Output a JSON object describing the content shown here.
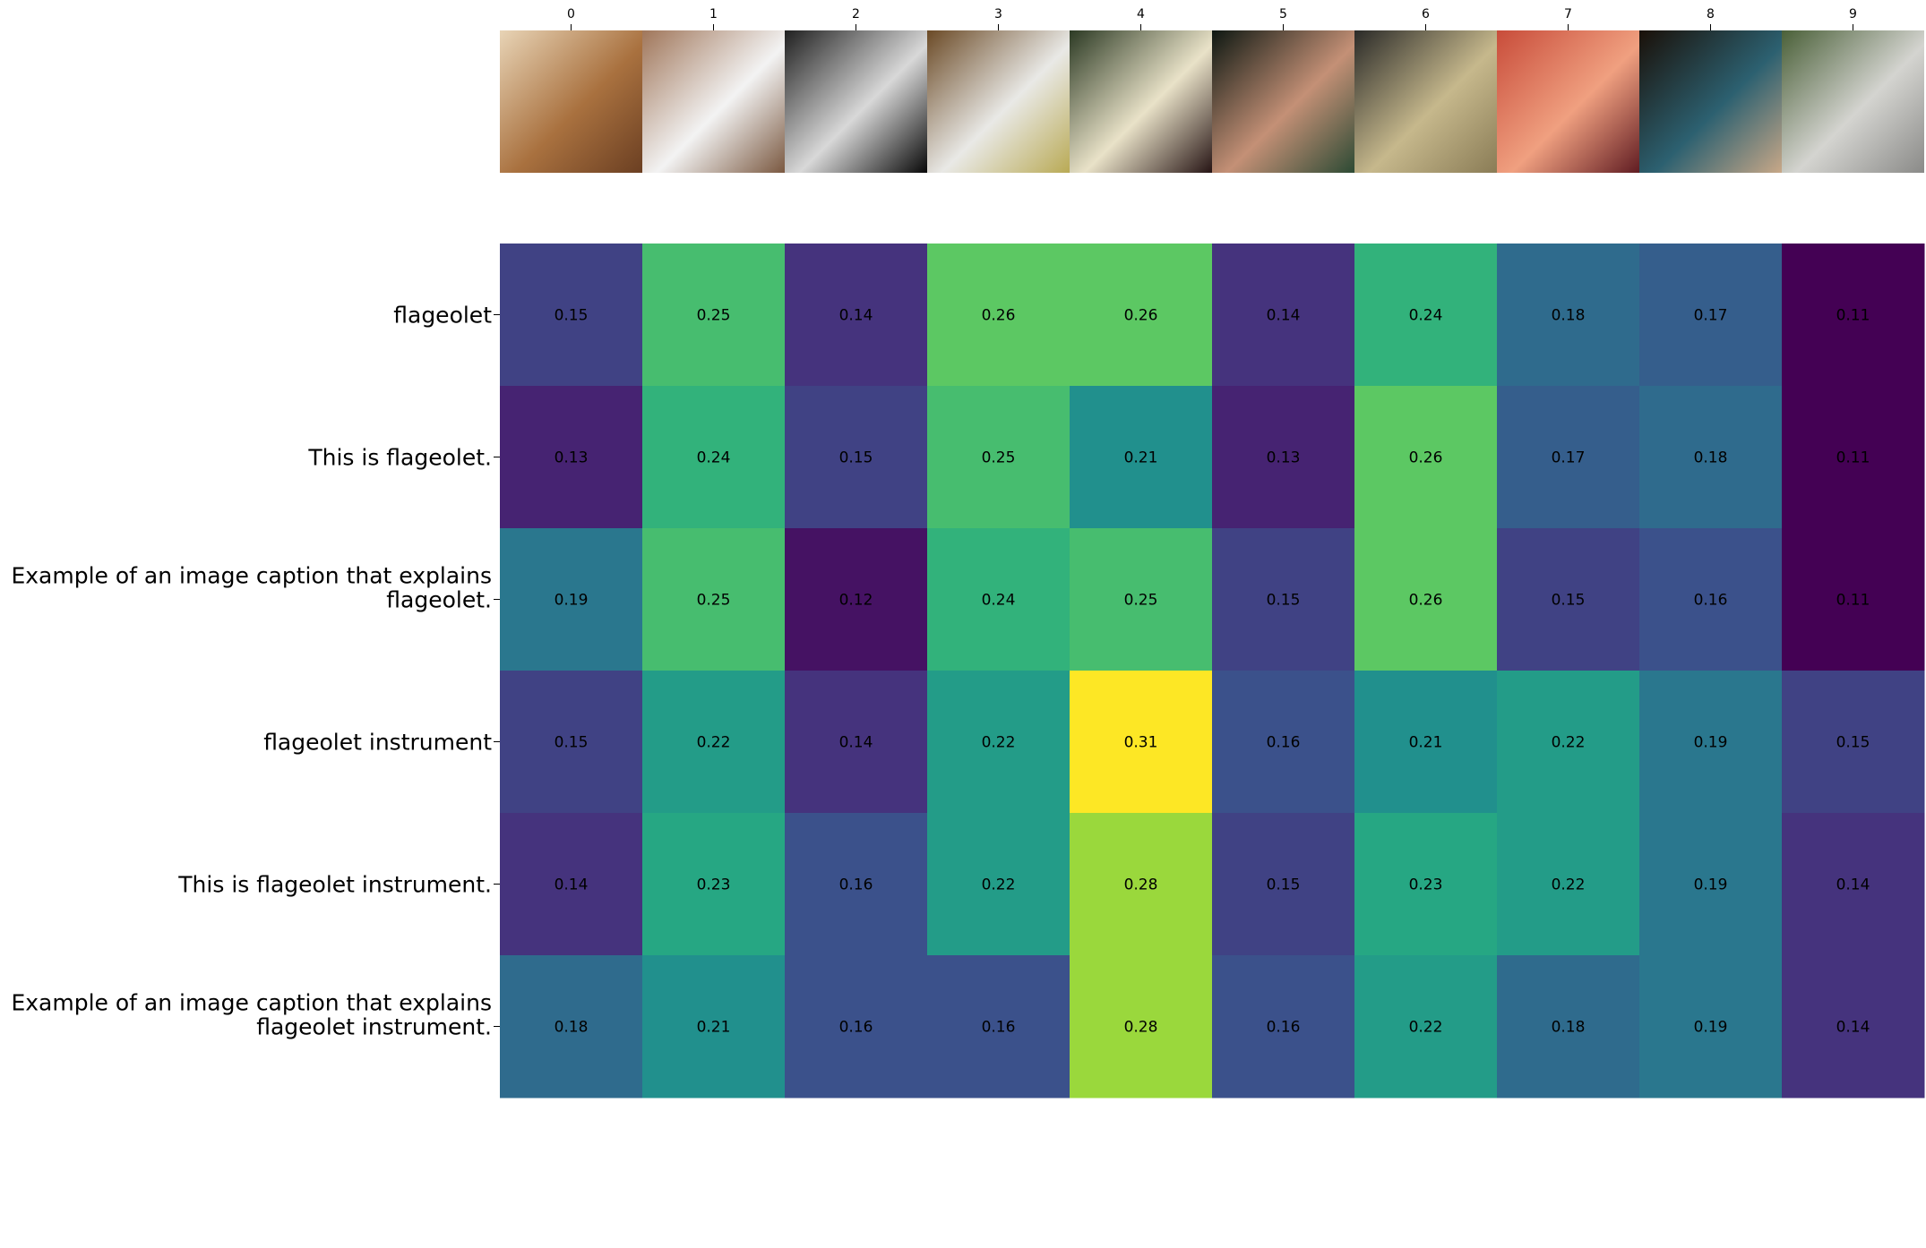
{
  "chart_data": {
    "type": "heatmap",
    "colormap": "viridis",
    "x_ticks": [
      "0",
      "1",
      "2",
      "3",
      "4",
      "5",
      "6",
      "7",
      "8",
      "9"
    ],
    "thumbnails": [
      {
        "name": "vintage-dance-illustration-thumb",
        "colors": [
          "#e8d4b6",
          "#a9713f",
          "#6b3f22"
        ]
      },
      {
        "name": "white-beans-on-wood-thumb",
        "colors": [
          "#a0765a",
          "#f3f3f3",
          "#7a5840"
        ]
      },
      {
        "name": "bw-violinist-thumb",
        "colors": [
          "#202020",
          "#d8d8d8",
          "#080808"
        ]
      },
      {
        "name": "bowl-of-beans-thumb",
        "colors": [
          "#6b4a26",
          "#e9e9e6",
          "#b9aa55"
        ]
      },
      {
        "name": "flageolet-instruments-thumb",
        "colors": [
          "#2c3a24",
          "#e9e2c8",
          "#261414"
        ]
      },
      {
        "name": "woman-playing-violin-thumb",
        "colors": [
          "#0e1812",
          "#c49076",
          "#2c4a34"
        ]
      },
      {
        "name": "jar-of-beans-thumb",
        "colors": [
          "#2a2a28",
          "#c6b88c",
          "#8a7c56"
        ]
      },
      {
        "name": "red-curtains-thumb",
        "colors": [
          "#c84c3a",
          "#f0a080",
          "#601c22"
        ]
      },
      {
        "name": "drum-thumb",
        "colors": [
          "#1a1008",
          "#2c6070",
          "#c8a888"
        ]
      },
      {
        "name": "cemetery-headstone-thumb",
        "colors": [
          "#4a6038",
          "#d4d4d0",
          "#8a8a88"
        ]
      }
    ],
    "y_labels": [
      [
        "flageolet"
      ],
      [
        "This is flageolet."
      ],
      [
        "Example of an image caption that explains",
        "flageolet."
      ],
      [
        "flageolet instrument"
      ],
      [
        "This is flageolet instrument."
      ],
      [
        "Example of an image caption that explains",
        "flageolet instrument."
      ]
    ],
    "values": [
      [
        0.15,
        0.25,
        0.14,
        0.26,
        0.26,
        0.14,
        0.24,
        0.18,
        0.17,
        0.11
      ],
      [
        0.13,
        0.24,
        0.15,
        0.25,
        0.21,
        0.13,
        0.26,
        0.17,
        0.18,
        0.11
      ],
      [
        0.19,
        0.25,
        0.12,
        0.24,
        0.25,
        0.15,
        0.26,
        0.15,
        0.16,
        0.11
      ],
      [
        0.15,
        0.22,
        0.14,
        0.22,
        0.31,
        0.16,
        0.21,
        0.22,
        0.19,
        0.15
      ],
      [
        0.14,
        0.23,
        0.16,
        0.22,
        0.28,
        0.15,
        0.23,
        0.22,
        0.19,
        0.14
      ],
      [
        0.18,
        0.21,
        0.16,
        0.16,
        0.28,
        0.16,
        0.22,
        0.18,
        0.19,
        0.14
      ]
    ],
    "value_range": [
      0.11,
      0.31
    ]
  }
}
